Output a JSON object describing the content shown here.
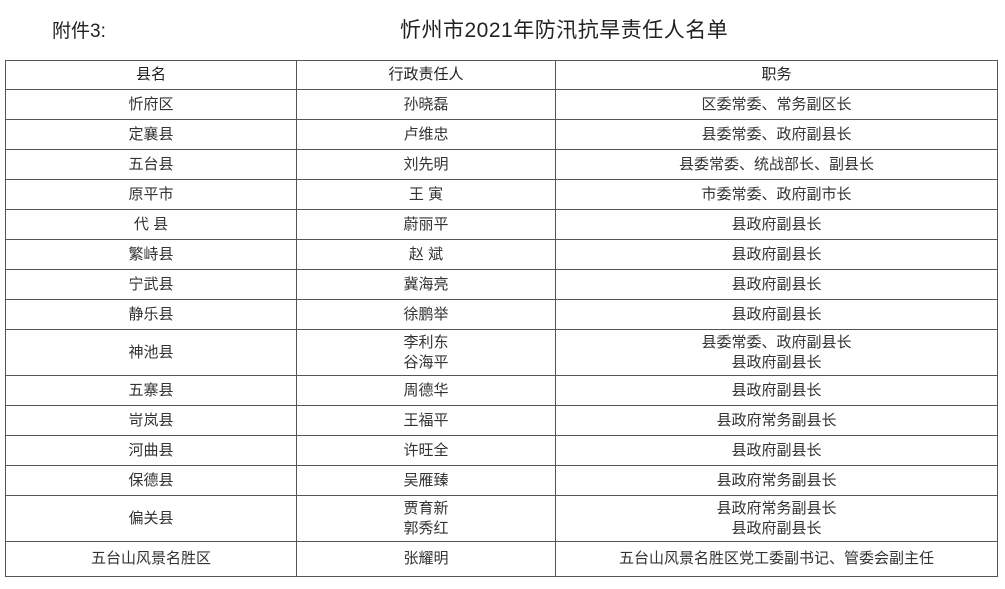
{
  "attachment_label": "附件3:",
  "title": "忻州市2021年防汛抗旱责任人名单",
  "table": {
    "headers": [
      "县名",
      "行政责任人",
      "职务"
    ],
    "rows": [
      {
        "county": "忻府区",
        "persons": [
          "孙晓磊"
        ],
        "positions": [
          "区委常委、常务副区长"
        ]
      },
      {
        "county": "定襄县",
        "persons": [
          "卢维忠"
        ],
        "positions": [
          "县委常委、政府副县长"
        ]
      },
      {
        "county": "五台县",
        "persons": [
          "刘先明"
        ],
        "positions": [
          "县委常委、统战部长、副县长"
        ]
      },
      {
        "county": "原平市",
        "persons": [
          "王 寅"
        ],
        "positions": [
          "市委常委、政府副市长"
        ]
      },
      {
        "county": "代 县",
        "persons": [
          "蔚丽平"
        ],
        "positions": [
          "县政府副县长"
        ]
      },
      {
        "county": "繁峙县",
        "persons": [
          "赵 斌"
        ],
        "positions": [
          "县政府副县长"
        ]
      },
      {
        "county": "宁武县",
        "persons": [
          "冀海亮"
        ],
        "positions": [
          "县政府副县长"
        ]
      },
      {
        "county": "静乐县",
        "persons": [
          "徐鹏举"
        ],
        "positions": [
          "县政府副县长"
        ]
      },
      {
        "county": "神池县",
        "persons": [
          "李利东",
          "谷海平"
        ],
        "positions": [
          "县委常委、政府副县长",
          "县政府副县长"
        ]
      },
      {
        "county": "五寨县",
        "persons": [
          "周德华"
        ],
        "positions": [
          "县政府副县长"
        ]
      },
      {
        "county": "岢岚县",
        "persons": [
          "王福平"
        ],
        "positions": [
          "县政府常务副县长"
        ]
      },
      {
        "county": "河曲县",
        "persons": [
          "许旺全"
        ],
        "positions": [
          "县政府副县长"
        ]
      },
      {
        "county": "保德县",
        "persons": [
          "吴雁臻"
        ],
        "positions": [
          "县政府常务副县长"
        ]
      },
      {
        "county": "偏关县",
        "persons": [
          "贾育新",
          "郭秀红"
        ],
        "positions": [
          "县政府常务副县长",
          "县政府副县长"
        ]
      },
      {
        "county": "五台山风景名胜区",
        "persons": [
          "张耀明"
        ],
        "positions": [
          "五台山风景名胜区党工委副书记、管委会副主任"
        ]
      }
    ]
  }
}
